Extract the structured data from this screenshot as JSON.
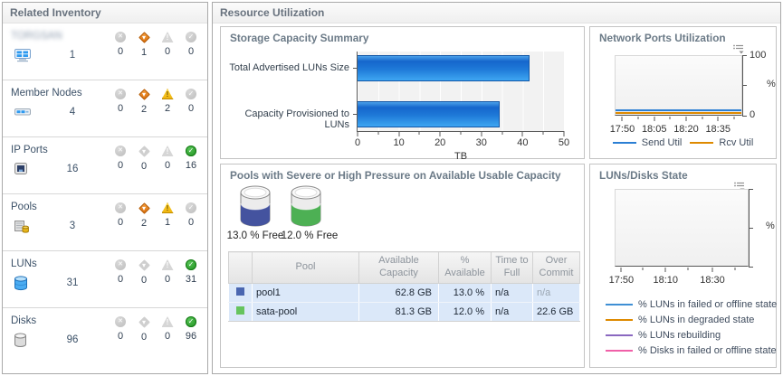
{
  "inventory": {
    "title": "Related Inventory",
    "rows": [
      {
        "label": "TORGSAN",
        "count": "1",
        "statuses": [
          "0",
          "1",
          "0",
          "0"
        ]
      },
      {
        "label": "Member Nodes",
        "count": "4",
        "statuses": [
          "0",
          "2",
          "2",
          "0"
        ]
      },
      {
        "label": "IP Ports",
        "count": "16",
        "statuses": [
          "0",
          "0",
          "0",
          "16"
        ]
      },
      {
        "label": "Pools",
        "count": "3",
        "statuses": [
          "0",
          "2",
          "1",
          "0"
        ]
      },
      {
        "label": "LUNs",
        "count": "31",
        "statuses": [
          "0",
          "0",
          "0",
          "31"
        ]
      },
      {
        "label": "Disks",
        "count": "96",
        "statuses": [
          "0",
          "0",
          "0",
          "96"
        ]
      }
    ],
    "status_colors": {
      "critical": "#c53a3a",
      "major": "#e2720e",
      "minor": "#edb00a",
      "normal": "#2fa12f"
    }
  },
  "resource": {
    "title": "Resource Utilization"
  },
  "charts": {
    "storage": {
      "type": "bar",
      "title": "Storage Capacity Summary",
      "categories": [
        "Total Advertised LUNs Size",
        "Capacity Provisioned to LUNs"
      ],
      "values": [
        41.7,
        34.5
      ],
      "xlabel": "TB",
      "xlim": [
        0,
        50
      ],
      "x_ticks": [
        "0",
        "10",
        "20",
        "30",
        "40",
        "50"
      ],
      "bar_color": "#1f7ad8"
    },
    "network": {
      "type": "line",
      "title": "Network Ports Utilization",
      "x_ticks": [
        "17:50",
        "18:05",
        "18:20",
        "18:35"
      ],
      "y_ticks": {
        "top": "100",
        "bottom": "0"
      },
      "ylabel": "%",
      "ylim": [
        0,
        100
      ],
      "series": [
        {
          "name": "Send Util",
          "color": "#2b7fd4",
          "approx_value_pct": 3
        },
        {
          "name": "Rcv Util",
          "color": "#de8a00",
          "approx_value_pct": 1
        }
      ]
    },
    "luns_disks": {
      "type": "line",
      "title": "LUNs/Disks State",
      "x_ticks": [
        "17:50",
        "18:10",
        "18:30"
      ],
      "ylabel": "%",
      "series": [
        {
          "name": "% LUNs in failed or offline state",
          "color": "#3f8fd4"
        },
        {
          "name": "% LUNs in degraded state",
          "color": "#de8a00"
        },
        {
          "name": "% LUNs rebuilding",
          "color": "#8a68c0"
        },
        {
          "name": "% Disks in failed or offline state",
          "color": "#f060a8"
        }
      ]
    }
  },
  "pools": {
    "title": "Pools with Severe or High Pressure on Available Usable Capacity",
    "gauges": [
      {
        "free_label": "13.0 % Free",
        "color": "#44539f"
      },
      {
        "free_label": "12.0 % Free",
        "color": "#4db054"
      }
    ],
    "table": {
      "headers": {
        "pool": "Pool",
        "available": "Available Capacity",
        "pct": "% Available",
        "ttf": "Time to Full",
        "over": "Over Commit"
      },
      "rows": [
        {
          "swatch": "#4a66b0",
          "pool": "pool1",
          "available": "62.8 GB",
          "pct": "13.0 %",
          "ttf": "n/a",
          "over": "n/a"
        },
        {
          "swatch": "#66c45e",
          "pool": "sata-pool",
          "available": "81.3 GB",
          "pct": "12.0 %",
          "ttf": "n/a",
          "over": "22.6 GB"
        }
      ]
    }
  }
}
